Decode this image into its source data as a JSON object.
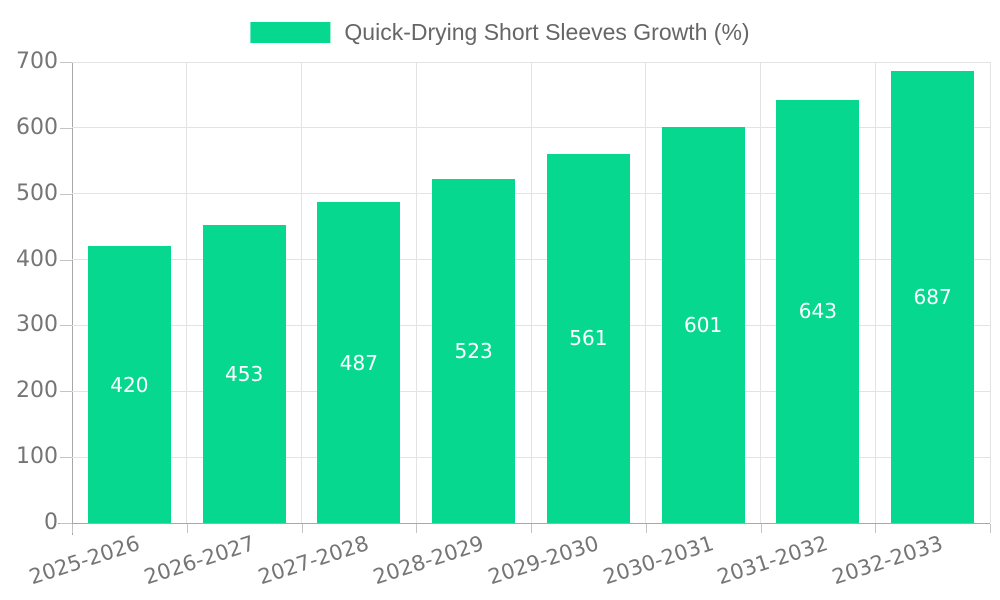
{
  "legend": {
    "label": "Quick-Drying Short Sleeves Growth (%)"
  },
  "chart_data": {
    "type": "bar",
    "title": "Quick-Drying Short Sleeves Growth (%)",
    "categories": [
      "2025-2026",
      "2026-2027",
      "2027-2028",
      "2028-2029",
      "2029-2030",
      "2030-2031",
      "2031-2032",
      "2032-2033"
    ],
    "values": [
      420,
      453,
      487,
      523,
      561,
      601,
      643,
      687
    ],
    "xlabel": "",
    "ylabel": "",
    "ylim": [
      0,
      700
    ],
    "yticks": [
      0,
      100,
      200,
      300,
      400,
      500,
      600,
      700
    ],
    "grid": true,
    "legend_position": "top-center",
    "value_labels": "inside-center",
    "xtick_rotation_deg": -18,
    "colors": {
      "bar": "#06d98f",
      "grid": "#e3e3e3",
      "axis": "#a8a8a8",
      "tick_mark": "#c4c4c4",
      "tick_text": "#757575",
      "legend_text": "#666666",
      "value_label": "#ffffff",
      "background": "#ffffff"
    }
  }
}
